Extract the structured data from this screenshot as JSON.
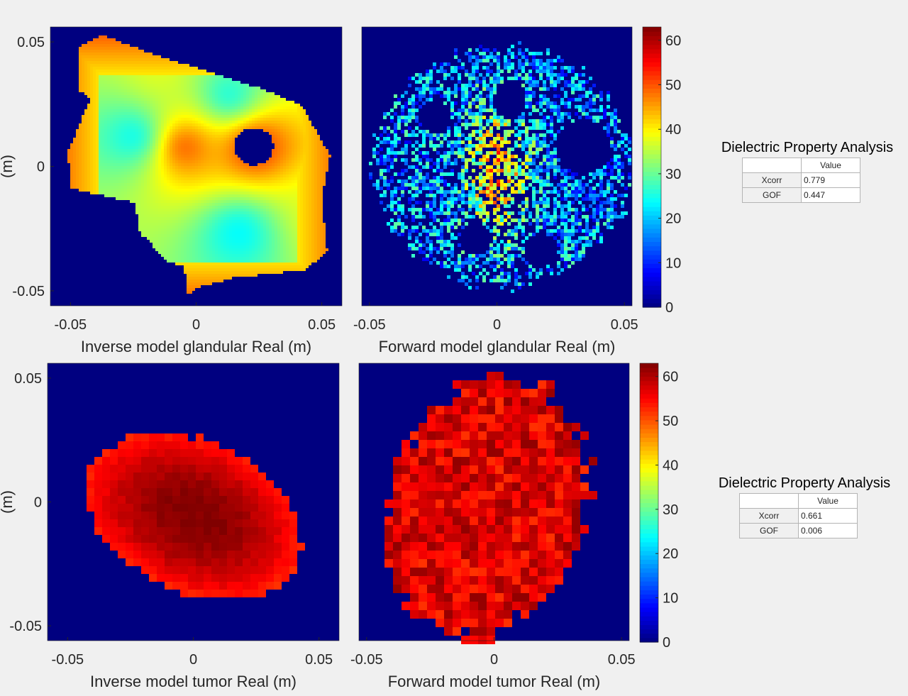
{
  "chart_data": [
    {
      "type": "heatmap",
      "xlabel": "Inverse model glandular Real (m)",
      "ylabel": "(m)",
      "xlim": [
        -0.058,
        0.058
      ],
      "ylim": [
        -0.056,
        0.056
      ],
      "x_ticks": [
        "-0.05",
        "0",
        "0.05"
      ],
      "y_ticks": [
        "0.05",
        "0",
        "-0.05"
      ],
      "colormap": "jet",
      "clim": [
        0,
        63
      ],
      "background_value": 0,
      "hot_spots": [
        {
          "x": 0.023,
          "y": 0.008,
          "value": 0
        },
        {
          "x": -0.024,
          "y": 0.012,
          "value": 22
        },
        {
          "x": 0.017,
          "y": -0.026,
          "value": 22
        },
        {
          "x": 0.013,
          "y": 0.028,
          "value": 23
        },
        {
          "x": -0.015,
          "y": 0.04,
          "value": 38
        },
        {
          "x": -0.005,
          "y": 0.008,
          "value": 52
        },
        {
          "x": 0.052,
          "y": -0.02,
          "value": 38
        }
      ]
    },
    {
      "type": "heatmap",
      "xlabel": "Forward model glandular Real (m)",
      "ylabel": "",
      "xlim": [
        -0.053,
        0.053
      ],
      "ylim": [
        -0.056,
        0.056
      ],
      "x_ticks": [
        "-0.05",
        "0",
        "0.05"
      ],
      "colormap": "jet",
      "clim": [
        0,
        63
      ],
      "background_value": 0,
      "value_range": [
        15,
        55
      ]
    },
    {
      "type": "heatmap",
      "xlabel": "Inverse model tumor Real (m)",
      "ylabel": "(m)",
      "xlim": [
        -0.058,
        0.058
      ],
      "ylim": [
        -0.056,
        0.056
      ],
      "x_ticks": [
        "-0.05",
        "0",
        "0.05"
      ],
      "y_ticks": [
        "0.05",
        "0",
        "-0.05"
      ],
      "colormap": "jet",
      "clim": [
        0,
        63
      ],
      "background_value": 0,
      "value_range": [
        52,
        63
      ]
    },
    {
      "type": "heatmap",
      "xlabel": "Forward model tumor Real (m)",
      "ylabel": "",
      "xlim": [
        -0.053,
        0.053
      ],
      "ylim": [
        -0.056,
        0.056
      ],
      "x_ticks": [
        "-0.05",
        "0",
        "0.05"
      ],
      "colormap": "jet",
      "clim": [
        0,
        63
      ],
      "background_value": 0,
      "value_range": [
        52,
        62
      ]
    }
  ],
  "colorbars": [
    {
      "ticks": [
        "60",
        "50",
        "40",
        "30",
        "20",
        "10",
        "0"
      ],
      "range": [
        0,
        63
      ]
    },
    {
      "ticks": [
        "60",
        "50",
        "40",
        "30",
        "20",
        "10",
        "0"
      ],
      "range": [
        0,
        63
      ]
    }
  ],
  "analysis_tables": [
    {
      "title": "Dielectric Property Analysis",
      "column_header": "Value",
      "rows": [
        {
          "label": "Xcorr",
          "value": "0.779"
        },
        {
          "label": "GOF",
          "value": "0.447"
        }
      ]
    },
    {
      "title": "Dielectric Property Analysis",
      "column_header": "Value",
      "rows": [
        {
          "label": "Xcorr",
          "value": "0.661"
        },
        {
          "label": "GOF",
          "value": "0.006"
        }
      ]
    }
  ]
}
